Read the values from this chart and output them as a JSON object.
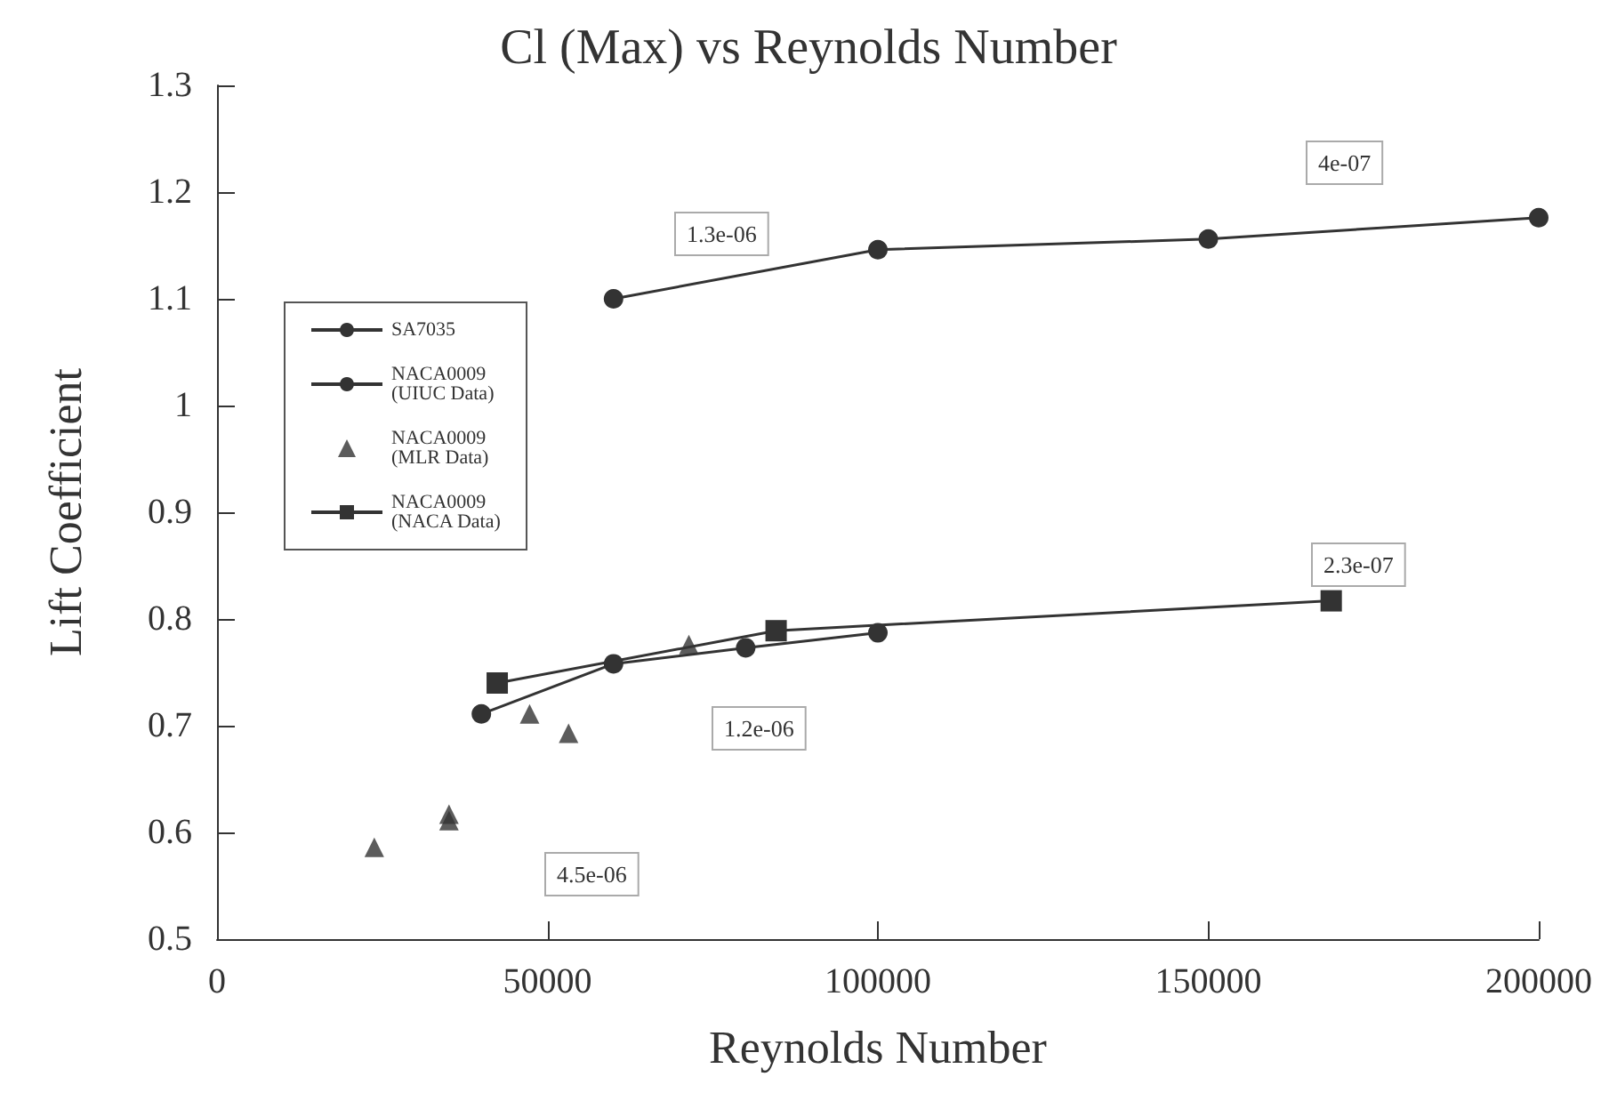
{
  "chart_data": {
    "type": "line",
    "title": "Cl (Max) vs Reynolds Number",
    "xlabel": "Reynolds Number",
    "ylabel": "Lift Coefficient",
    "xlim": [
      0,
      200000
    ],
    "xticks": [
      0,
      50000,
      100000,
      150000,
      200000
    ],
    "ylim": [
      0.5,
      1.3
    ],
    "yticks": [
      0.5,
      0.6,
      0.7,
      0.8,
      0.9,
      1.0,
      1.1,
      1.2,
      1.3
    ],
    "grid": false,
    "legend": "top left",
    "line_style": "solid",
    "series": [
      {
        "name": "SA7035",
        "color": "#333333",
        "marker": "circle",
        "x": [
          60000,
          100000,
          150000,
          200000
        ],
        "values": [
          1.1,
          1.146,
          1.156,
          1.176
        ]
      },
      {
        "name": "NACA0009\n(UIUC Data)",
        "color": "#333333",
        "marker": "circle",
        "x": [
          40000,
          60000,
          80000,
          100000
        ],
        "values": [
          0.711,
          0.758,
          0.773,
          0.787
        ]
      },
      {
        "name": "NACA0009\n(MLR Data)",
        "type": "scatter",
        "color": "#333333",
        "marker": "triangle",
        "x": [
          23800,
          35100,
          35100,
          47300,
          53200,
          71400
        ],
        "values": [
          0.586,
          0.611,
          0.617,
          0.711,
          0.693,
          0.776
        ]
      },
      {
        "name": "NACA0009\n(NACA Data)",
        "color": "#333333",
        "marker": "square",
        "x": [
          42400,
          84600,
          168600
        ],
        "values": [
          0.74,
          0.789,
          0.817
        ]
      }
    ],
    "annotations": [
      "1.3e-06",
      "4e-07",
      "2.3e-07",
      "1.2e-06",
      "4.5e-06"
    ]
  }
}
